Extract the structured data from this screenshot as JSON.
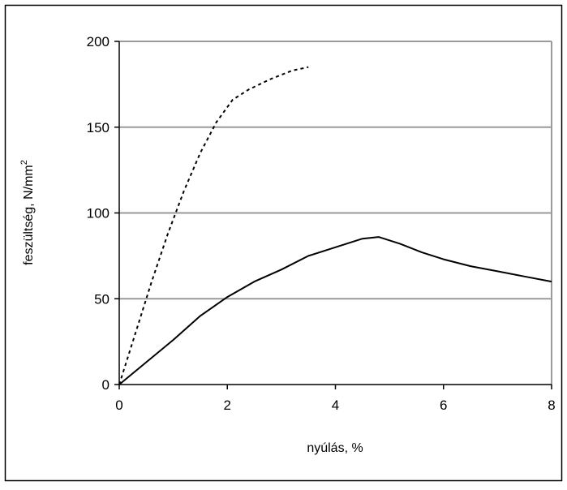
{
  "chart_data": {
    "type": "line",
    "xlabel": "nyúlás, %",
    "ylabel_main": "feszültség, N/mm",
    "ylabel_sup": "2",
    "xlim": [
      0,
      8
    ],
    "ylim": [
      0,
      200
    ],
    "xticks": [
      "0",
      "2",
      "4",
      "6",
      "8"
    ],
    "yticks": [
      "0",
      "50",
      "100",
      "150",
      "200"
    ],
    "grid": "horizontal",
    "legend": "none",
    "series": [
      {
        "style": "dotted",
        "color": "#000000",
        "x": [
          0,
          0.3,
          0.6,
          0.9,
          1.2,
          1.5,
          1.8,
          2.1,
          2.4,
          2.8,
          3.2,
          3.5
        ],
        "y": [
          0,
          30,
          60,
          88,
          113,
          135,
          153,
          166,
          172,
          178,
          183,
          185
        ]
      },
      {
        "style": "solid",
        "color": "#000000",
        "x": [
          0,
          0.5,
          1.0,
          1.5,
          2.0,
          2.5,
          3.0,
          3.5,
          4.0,
          4.5,
          4.8,
          5.2,
          5.6,
          6.0,
          6.5,
          7.0,
          7.5,
          8.0
        ],
        "y": [
          0,
          13,
          26,
          40,
          51,
          60,
          67,
          75,
          80,
          85,
          86,
          82,
          77,
          73,
          69,
          66,
          63,
          60
        ]
      }
    ]
  }
}
